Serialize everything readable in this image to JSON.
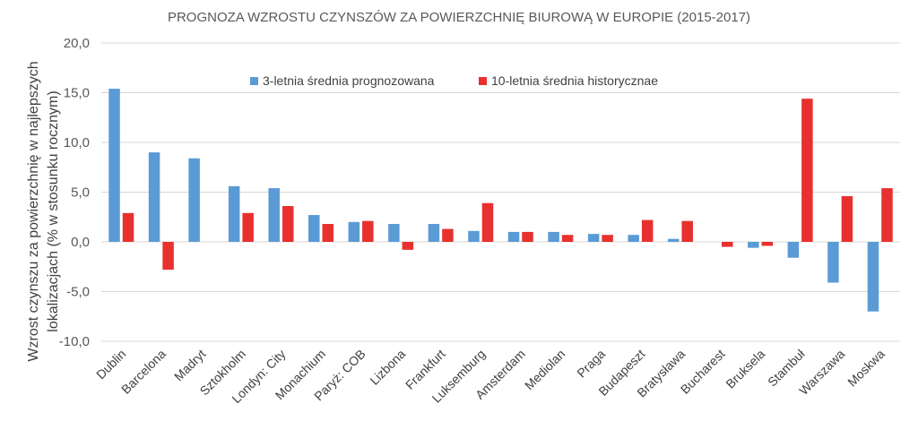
{
  "chart_data": {
    "type": "bar",
    "title": "PROGNOZA WZROSTU CZYNSZÓW ZA POWIERZCHNIĘ BIUROWĄ W EUROPIE (2015-2017)",
    "ylabel": "Wzrost czynszu za powierzchnię w najlepszych lokalizacjach (% w stosunku rocznym)",
    "ylabel_lines": [
      "Wzrost czynszu za powierzchnię w najlepszych",
      "lokalizacjach (% w stosunku rocznym)"
    ],
    "xlabel": "",
    "ylim": [
      -10,
      20
    ],
    "yticks": [
      20,
      15,
      10,
      5,
      0,
      -5,
      -10
    ],
    "yticklabels": [
      "20,0",
      "15,0",
      "10,0",
      "5,0",
      "0,0",
      "-5,0",
      "-10,0"
    ],
    "grid": true,
    "legend_position": "top-center",
    "categories": [
      "Dublin",
      "Barcelona",
      "Madryt",
      "Sztokholm",
      "Londyn: City",
      "Monachium",
      "Paryż: COB",
      "Lizbona",
      "Frankfurt",
      "Luksemburg",
      "Amsterdam",
      "Mediolan",
      "Praga",
      "Budapeszt",
      "Bratysława",
      "Bucharest",
      "Bruksela",
      "Stambuł",
      "Warszawa",
      "Moskwa"
    ],
    "series": [
      {
        "name": "3-letnia średnia prognozowana",
        "color": "#5B9BD5",
        "values": [
          15.4,
          9.0,
          8.4,
          5.6,
          5.4,
          2.7,
          2.0,
          1.8,
          1.8,
          1.1,
          1.0,
          1.0,
          0.8,
          0.7,
          0.3,
          0.0,
          -0.6,
          -1.6,
          -4.1,
          -7.0
        ]
      },
      {
        "name": "10-letnia średnia historycznae",
        "color": "#E8312F",
        "values": [
          2.9,
          -2.8,
          0.0,
          2.9,
          3.6,
          1.8,
          2.1,
          -0.8,
          1.3,
          3.9,
          1.0,
          0.7,
          0.7,
          2.2,
          2.1,
          -0.5,
          -0.4,
          14.4,
          4.6,
          5.4
        ]
      }
    ]
  }
}
